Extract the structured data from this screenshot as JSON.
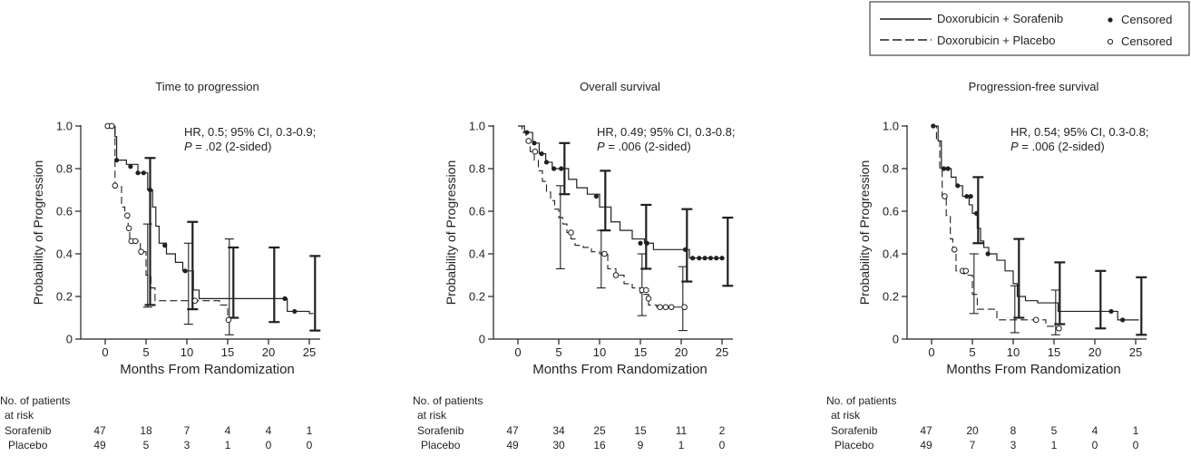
{
  "legend": {
    "items": [
      {
        "label": "Doxorubicin + Sorafenib",
        "style": "solid",
        "censor_label": "Censored",
        "censor_marker": "filled"
      },
      {
        "label": "Doxorubicin + Placebo",
        "style": "dashed",
        "censor_label": "Censored",
        "censor_marker": "open"
      }
    ]
  },
  "risk_table": {
    "header_line1": "No. of patients",
    "header_line2": "at risk",
    "row_labels": [
      "Sorafenib",
      "Placebo"
    ]
  },
  "colors": {
    "ink": "#231f20",
    "background": "#ffffff"
  },
  "chart_data": [
    {
      "type": "line",
      "title": "Time to progression",
      "xlabel": "Months From Randomization",
      "ylabel": "Probability of Progression",
      "xlim": [
        0,
        25
      ],
      "ylim": [
        0,
        1
      ],
      "xticks": [
        "0",
        "5",
        "10",
        "15",
        "20",
        "25"
      ],
      "yticks": [
        "0",
        "0.2",
        "0.4",
        "0.6",
        "0.8",
        "1.0"
      ],
      "annotation": {
        "line1": "HR, 0.5; 95% CI, 0.3-0.9;",
        "p_label": "P",
        "p_text": " = .02 (2-sided)"
      },
      "series": [
        {
          "name": "Doxorubicin + Sorafenib",
          "style": "solid",
          "steps": [
            [
              0,
              1.0
            ],
            [
              1.2,
              0.95
            ],
            [
              1.4,
              0.84
            ],
            [
              2.6,
              0.82
            ],
            [
              4.0,
              0.78
            ],
            [
              5.2,
              0.7
            ],
            [
              5.8,
              0.62
            ],
            [
              6.2,
              0.53
            ],
            [
              6.6,
              0.45
            ],
            [
              7.5,
              0.4
            ],
            [
              8.6,
              0.36
            ],
            [
              9.5,
              0.32
            ],
            [
              10.8,
              0.23
            ],
            [
              11.5,
              0.19
            ],
            [
              13.5,
              0.19
            ],
            [
              22.0,
              0.19
            ],
            [
              22.3,
              0.13
            ],
            [
              23.5,
              0.13
            ],
            [
              25.0,
              0.12
            ]
          ],
          "end": 25.5,
          "censored": [
            [
              1.4,
              0.84
            ],
            [
              3.1,
              0.81
            ],
            [
              4.0,
              0.78
            ],
            [
              4.7,
              0.78
            ],
            [
              5.5,
              0.7
            ],
            [
              7.3,
              0.44
            ],
            [
              9.8,
              0.32
            ],
            [
              22.0,
              0.19
            ],
            [
              23.2,
              0.13
            ]
          ],
          "ci_bars": [
            {
              "x": 5.5,
              "lo": 0.16,
              "hi": 0.85
            },
            {
              "x": 10.7,
              "lo": 0.14,
              "hi": 0.55
            },
            {
              "x": 15.7,
              "lo": 0.1,
              "hi": 0.43
            },
            {
              "x": 20.7,
              "lo": 0.08,
              "hi": 0.43
            },
            {
              "x": 25.7,
              "lo": 0.04,
              "hi": 0.39
            }
          ]
        },
        {
          "name": "Doxorubicin + Placebo",
          "style": "dashed",
          "steps": [
            [
              0,
              1.0
            ],
            [
              1.0,
              1.0
            ],
            [
              1.2,
              0.72
            ],
            [
              2.0,
              0.62
            ],
            [
              2.4,
              0.58
            ],
            [
              2.8,
              0.52
            ],
            [
              3.0,
              0.46
            ],
            [
              4.3,
              0.41
            ],
            [
              5.0,
              0.3
            ],
            [
              5.6,
              0.24
            ],
            [
              6.1,
              0.18
            ],
            [
              9.8,
              0.18
            ],
            [
              10.5,
              0.18
            ],
            [
              14.0,
              0.16
            ],
            [
              15.0,
              0.1
            ]
          ],
          "end": 15.0,
          "censored": [
            [
              0.3,
              1.0
            ],
            [
              0.8,
              1.0
            ],
            [
              1.2,
              0.72
            ],
            [
              2.7,
              0.58
            ],
            [
              2.9,
              0.52
            ],
            [
              3.2,
              0.46
            ],
            [
              3.7,
              0.46
            ],
            [
              4.4,
              0.41
            ],
            [
              11.0,
              0.18
            ],
            [
              15.1,
              0.09
            ]
          ],
          "ci_bars": [
            {
              "x": 5.2,
              "lo": 0.15,
              "hi": 0.54
            },
            {
              "x": 10.2,
              "lo": 0.07,
              "hi": 0.45
            },
            {
              "x": 15.2,
              "lo": 0.02,
              "hi": 0.47
            }
          ]
        }
      ],
      "risk_x": [
        "0",
        "5",
        "10",
        "15",
        "20",
        "25"
      ],
      "risk": [
        [
          "47",
          "18",
          "7",
          "4",
          "4",
          "1"
        ],
        [
          "49",
          "5",
          "3",
          "1",
          "0",
          "0"
        ]
      ]
    },
    {
      "type": "line",
      "title": "Overall survival",
      "xlabel": "Months From Randomization",
      "ylabel": "Probability of Progression",
      "xlim": [
        0,
        25
      ],
      "ylim": [
        0,
        1
      ],
      "xticks": [
        "0",
        "5",
        "10",
        "15",
        "20",
        "25"
      ],
      "yticks": [
        "0",
        "0.2",
        "0.4",
        "0.6",
        "0.8",
        "1.0"
      ],
      "annotation": {
        "line1": "HR, 0.49; 95% CI, 0.3-0.8;",
        "p_label": "P",
        "p_text": " = .006 (2-sided)"
      },
      "series": [
        {
          "name": "Doxorubicin + Sorafenib",
          "style": "solid",
          "steps": [
            [
              0,
              1.0
            ],
            [
              0.8,
              0.97
            ],
            [
              1.8,
              0.92
            ],
            [
              2.6,
              0.87
            ],
            [
              3.4,
              0.83
            ],
            [
              4.2,
              0.8
            ],
            [
              6.2,
              0.75
            ],
            [
              7.2,
              0.71
            ],
            [
              8.5,
              0.68
            ],
            [
              10.0,
              0.62
            ],
            [
              11.4,
              0.55
            ],
            [
              12.5,
              0.51
            ],
            [
              14.0,
              0.47
            ],
            [
              15.5,
              0.45
            ],
            [
              16.6,
              0.42
            ],
            [
              20.5,
              0.42
            ],
            [
              21.0,
              0.38
            ],
            [
              25.0,
              0.38
            ]
          ],
          "end": 25.3,
          "censored": [
            [
              1.1,
              0.97
            ],
            [
              2.0,
              0.92
            ],
            [
              2.9,
              0.87
            ],
            [
              3.5,
              0.83
            ],
            [
              4.4,
              0.8
            ],
            [
              5.3,
              0.8
            ],
            [
              9.6,
              0.67
            ],
            [
              15.0,
              0.45
            ],
            [
              15.8,
              0.45
            ],
            [
              20.5,
              0.42
            ],
            [
              21.4,
              0.38
            ],
            [
              22.2,
              0.38
            ],
            [
              22.9,
              0.38
            ],
            [
              23.6,
              0.38
            ],
            [
              24.3,
              0.38
            ],
            [
              25.0,
              0.38
            ]
          ],
          "ci_bars": [
            {
              "x": 5.7,
              "lo": 0.68,
              "hi": 0.92
            },
            {
              "x": 10.7,
              "lo": 0.51,
              "hi": 0.79
            },
            {
              "x": 15.7,
              "lo": 0.33,
              "hi": 0.63
            },
            {
              "x": 20.7,
              "lo": 0.27,
              "hi": 0.61
            },
            {
              "x": 25.7,
              "lo": 0.25,
              "hi": 0.57
            }
          ]
        },
        {
          "name": "Doxorubicin + Placebo",
          "style": "dashed",
          "steps": [
            [
              0,
              1.0
            ],
            [
              0.5,
              0.97
            ],
            [
              1.0,
              0.93
            ],
            [
              1.5,
              0.88
            ],
            [
              2.0,
              0.84
            ],
            [
              2.5,
              0.79
            ],
            [
              3.0,
              0.74
            ],
            [
              3.5,
              0.69
            ],
            [
              4.0,
              0.65
            ],
            [
              4.5,
              0.61
            ],
            [
              5.0,
              0.57
            ],
            [
              5.5,
              0.54
            ],
            [
              6.0,
              0.5
            ],
            [
              6.5,
              0.47
            ],
            [
              7.0,
              0.44
            ],
            [
              8.0,
              0.43
            ],
            [
              9.0,
              0.41
            ],
            [
              10.0,
              0.4
            ],
            [
              11.0,
              0.33
            ],
            [
              12.0,
              0.3
            ],
            [
              13.0,
              0.26
            ],
            [
              14.0,
              0.24
            ],
            [
              15.0,
              0.21
            ],
            [
              16.0,
              0.16
            ],
            [
              17.0,
              0.15
            ],
            [
              20.5,
              0.15
            ]
          ],
          "end": 20.5,
          "censored": [
            [
              1.3,
              0.93
            ],
            [
              2.1,
              0.88
            ],
            [
              6.5,
              0.5
            ],
            [
              10.6,
              0.4
            ],
            [
              12.0,
              0.3
            ],
            [
              15.2,
              0.23
            ],
            [
              15.7,
              0.23
            ],
            [
              16.0,
              0.19
            ],
            [
              17.4,
              0.15
            ],
            [
              18.1,
              0.15
            ],
            [
              18.8,
              0.15
            ],
            [
              20.4,
              0.15
            ]
          ],
          "ci_bars": [
            {
              "x": 5.2,
              "lo": 0.33,
              "hi": 0.72
            },
            {
              "x": 10.2,
              "lo": 0.24,
              "hi": 0.51
            },
            {
              "x": 15.2,
              "lo": 0.11,
              "hi": 0.4
            },
            {
              "x": 20.2,
              "lo": 0.04,
              "hi": 0.34
            }
          ]
        }
      ],
      "risk_x": [
        "0",
        "5",
        "10",
        "15",
        "20",
        "25"
      ],
      "risk": [
        [
          "47",
          "34",
          "25",
          "15",
          "11",
          "2"
        ],
        [
          "49",
          "30",
          "16",
          "9",
          "1",
          "0"
        ]
      ]
    },
    {
      "type": "line",
      "title": "Progression-free survival",
      "xlabel": "Months From Randomization",
      "ylabel": "Probability of Progression",
      "xlim": [
        0,
        25
      ],
      "ylim": [
        0,
        1
      ],
      "xticks": [
        "0",
        "5",
        "10",
        "15",
        "20",
        "25"
      ],
      "yticks": [
        "0",
        "0.2",
        "0.4",
        "0.6",
        "0.8",
        "1.0"
      ],
      "annotation": {
        "line1": "HR, 0.54; 95% CI, 0.3-0.8;",
        "p_label": "P",
        "p_text": " = .006 (2-sided)"
      },
      "series": [
        {
          "name": "Doxorubicin + Sorafenib",
          "style": "solid",
          "steps": [
            [
              0,
              1.0
            ],
            [
              0.8,
              0.93
            ],
            [
              1.2,
              0.8
            ],
            [
              2.4,
              0.76
            ],
            [
              3.0,
              0.72
            ],
            [
              3.8,
              0.67
            ],
            [
              4.6,
              0.63
            ],
            [
              5.0,
              0.59
            ],
            [
              5.6,
              0.52
            ],
            [
              6.0,
              0.46
            ],
            [
              6.4,
              0.43
            ],
            [
              7.0,
              0.4
            ],
            [
              8.0,
              0.37
            ],
            [
              9.0,
              0.32
            ],
            [
              10.0,
              0.26
            ],
            [
              10.5,
              0.2
            ],
            [
              11.5,
              0.18
            ],
            [
              13.0,
              0.17
            ],
            [
              15.5,
              0.13
            ],
            [
              22.0,
              0.13
            ],
            [
              22.8,
              0.09
            ],
            [
              25.0,
              0.09
            ]
          ],
          "end": 25.4,
          "censored": [
            [
              0.2,
              1.0
            ],
            [
              1.5,
              0.8
            ],
            [
              2.0,
              0.8
            ],
            [
              3.2,
              0.72
            ],
            [
              4.3,
              0.67
            ],
            [
              4.8,
              0.67
            ],
            [
              5.5,
              0.59
            ],
            [
              6.9,
              0.4
            ],
            [
              22.0,
              0.13
            ],
            [
              23.4,
              0.09
            ]
          ],
          "ci_bars": [
            {
              "x": 5.7,
              "lo": 0.45,
              "hi": 0.76
            },
            {
              "x": 10.7,
              "lo": 0.1,
              "hi": 0.47
            },
            {
              "x": 15.7,
              "lo": 0.07,
              "hi": 0.36
            },
            {
              "x": 20.7,
              "lo": 0.05,
              "hi": 0.32
            },
            {
              "x": 25.7,
              "lo": 0.02,
              "hi": 0.29
            }
          ]
        },
        {
          "name": "Doxorubicin + Placebo",
          "style": "dashed",
          "steps": [
            [
              0,
              1.0
            ],
            [
              0.3,
              1.0
            ],
            [
              0.6,
              0.93
            ],
            [
              1.0,
              0.8
            ],
            [
              1.3,
              0.67
            ],
            [
              1.8,
              0.58
            ],
            [
              2.3,
              0.47
            ],
            [
              2.6,
              0.42
            ],
            [
              3.0,
              0.32
            ],
            [
              4.0,
              0.3
            ],
            [
              5.0,
              0.21
            ],
            [
              5.6,
              0.14
            ],
            [
              8.0,
              0.09
            ],
            [
              12.0,
              0.09
            ],
            [
              13.0,
              0.09
            ],
            [
              14.0,
              0.06
            ],
            [
              15.5,
              0.06
            ]
          ],
          "end": 15.5,
          "censored": [
            [
              1.6,
              0.67
            ],
            [
              2.8,
              0.42
            ],
            [
              3.8,
              0.32
            ],
            [
              4.2,
              0.32
            ],
            [
              12.8,
              0.09
            ],
            [
              15.6,
              0.05
            ]
          ],
          "ci_bars": [
            {
              "x": 5.2,
              "lo": 0.12,
              "hi": 0.4
            },
            {
              "x": 10.2,
              "lo": 0.03,
              "hi": 0.25
            },
            {
              "x": 15.2,
              "lo": 0.02,
              "hi": 0.23
            }
          ]
        }
      ],
      "risk_x": [
        "0",
        "5",
        "10",
        "15",
        "20",
        "25"
      ],
      "risk": [
        [
          "47",
          "20",
          "8",
          "5",
          "4",
          "1"
        ],
        [
          "49",
          "7",
          "3",
          "1",
          "0",
          "0"
        ]
      ]
    }
  ]
}
